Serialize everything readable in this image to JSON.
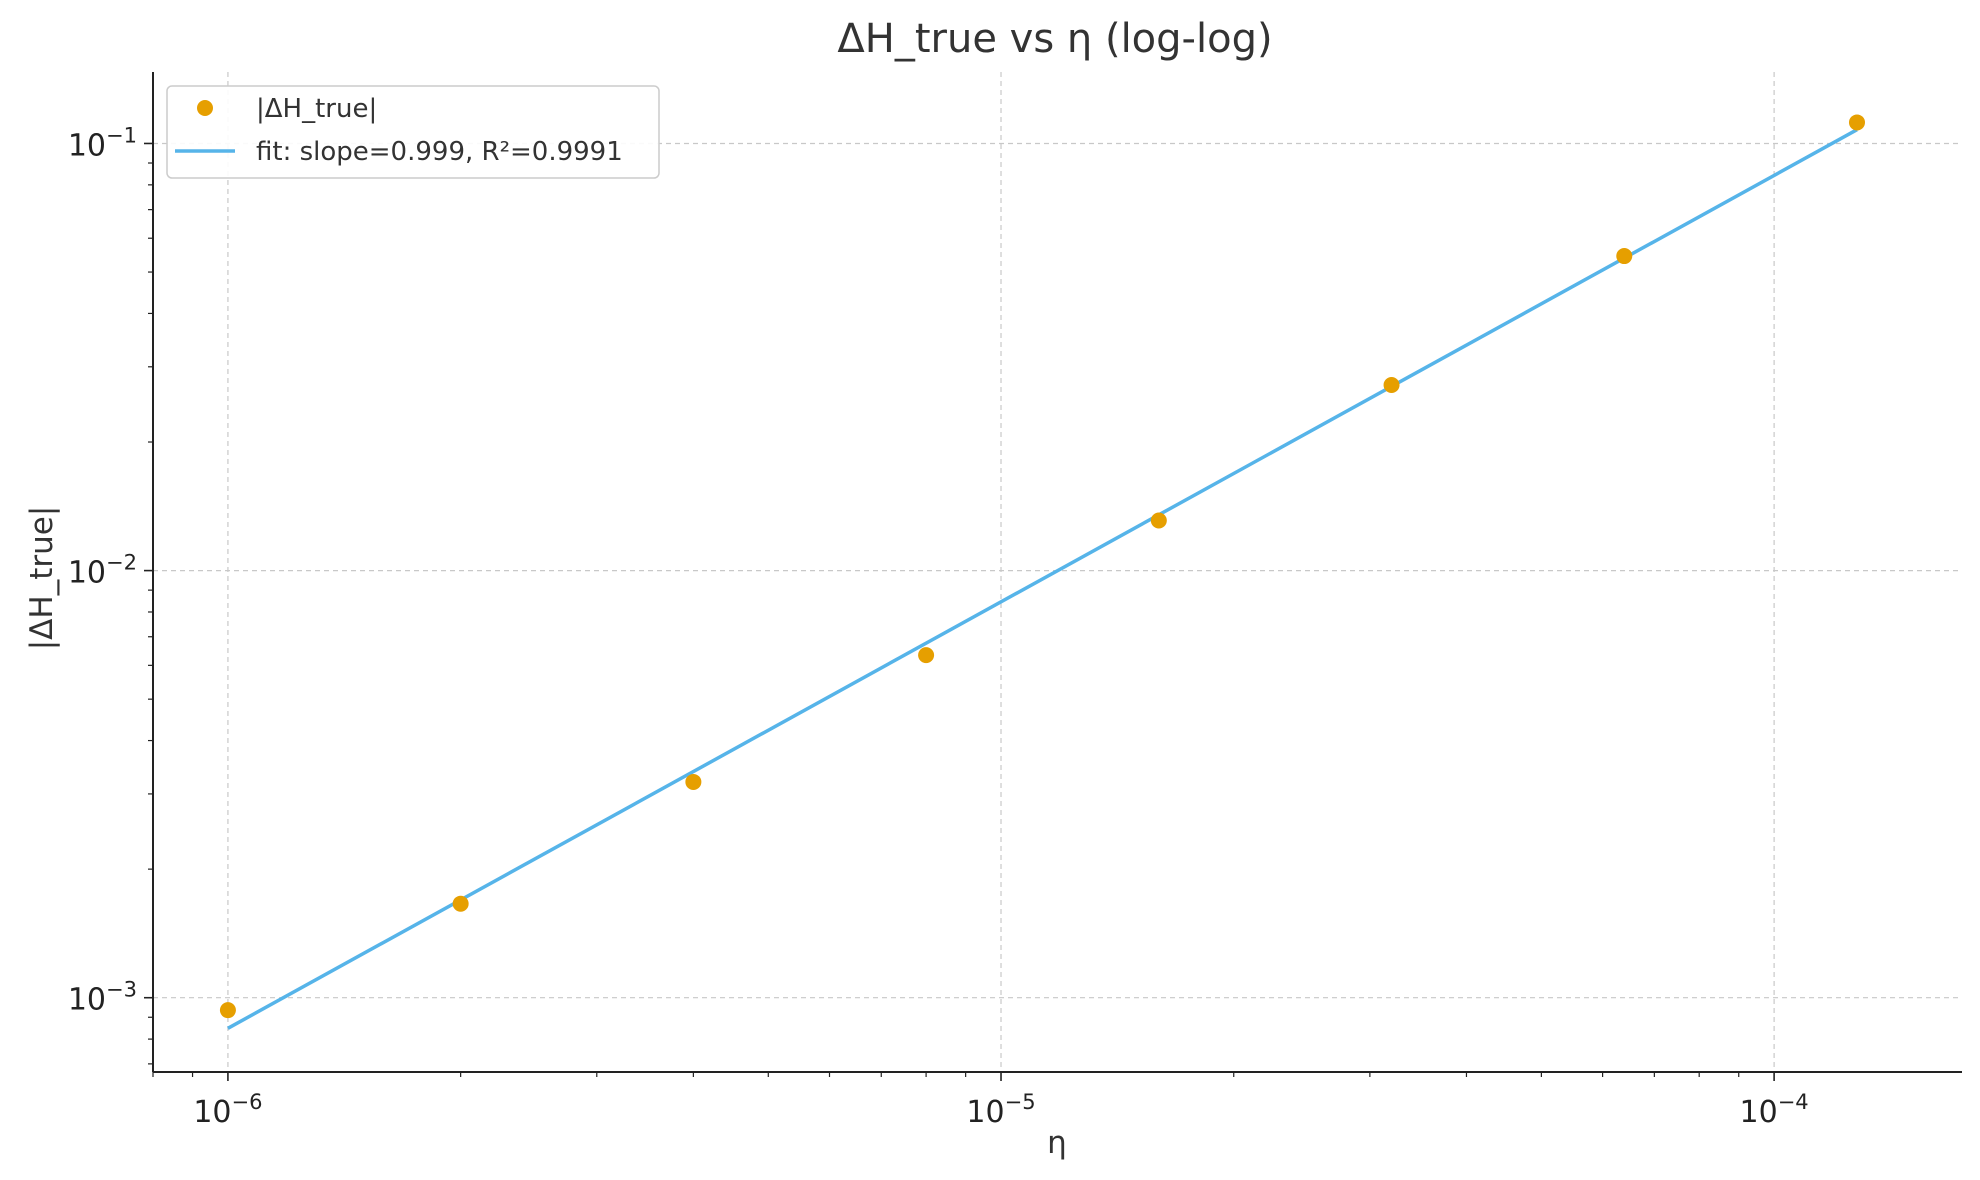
{
  "chart_data": {
    "type": "scatter",
    "title": "ΔH_true vs η (log-log)",
    "xlabel": "η",
    "ylabel": "|ΔH_true|",
    "xscale": "log",
    "yscale": "log",
    "xlim": [
      8e-07,
      0.000175
    ],
    "ylim": [
      0.00067,
      0.147
    ],
    "grid": true,
    "legend_position": "top-left",
    "x_ticks": [
      {
        "value": 1e-06,
        "base": "10",
        "exp": "−6"
      },
      {
        "value": 1e-05,
        "base": "10",
        "exp": "−5"
      },
      {
        "value": 0.0001,
        "base": "10",
        "exp": "−4"
      }
    ],
    "y_ticks": [
      {
        "value": 0.001,
        "base": "10",
        "exp": "−3"
      },
      {
        "value": 0.01,
        "base": "10",
        "exp": "−2"
      },
      {
        "value": 0.1,
        "base": "10",
        "exp": "−1"
      }
    ],
    "series": [
      {
        "name": "|ΔH_true|",
        "kind": "scatter",
        "color": "#E69F00",
        "x": [
          1e-06,
          2e-06,
          4e-06,
          8e-06,
          1.6e-05,
          3.2e-05,
          6.4e-05,
          0.000128
        ],
        "y": [
          0.000935,
          0.00166,
          0.0032,
          0.00634,
          0.0131,
          0.0272,
          0.0545,
          0.112
        ]
      },
      {
        "name": "fit: slope=0.999, R²=0.9991",
        "kind": "line",
        "color": "#56B4E9",
        "x": [
          1e-06,
          0.000128
        ],
        "y": [
          0.000848,
          0.1077
        ]
      }
    ]
  }
}
